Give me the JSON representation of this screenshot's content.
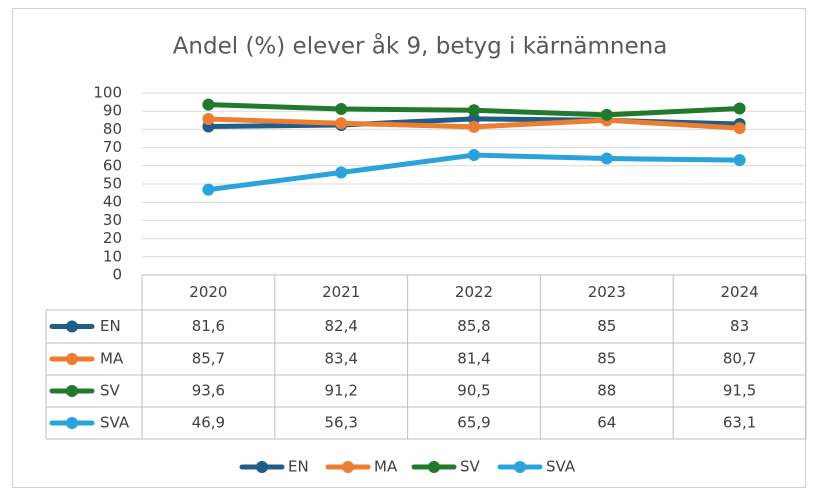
{
  "chart_data": {
    "type": "line",
    "title": "Andel (%) elever åk 9, betyg i kärnämnena",
    "categories": [
      "2020",
      "2021",
      "2022",
      "2023",
      "2024"
    ],
    "series": [
      {
        "name": "EN",
        "color": "#1f5f87",
        "values": [
          81.6,
          82.4,
          85.8,
          85,
          83
        ],
        "value_labels": [
          "81,6",
          "82,4",
          "85,8",
          "85",
          "83"
        ]
      },
      {
        "name": "MA",
        "color": "#ed7d31",
        "values": [
          85.7,
          83.4,
          81.4,
          85,
          80.7
        ],
        "value_labels": [
          "85,7",
          "83,4",
          "81,4",
          "85",
          "80,7"
        ]
      },
      {
        "name": "SV",
        "color": "#217a2b",
        "values": [
          93.6,
          91.2,
          90.5,
          88,
          91.5
        ],
        "value_labels": [
          "93,6",
          "91,2",
          "90,5",
          "88",
          "91,5"
        ]
      },
      {
        "name": "SVA",
        "color": "#2aa3dc",
        "values": [
          46.9,
          56.3,
          65.9,
          64,
          63.1
        ],
        "value_labels": [
          "46,9",
          "56,3",
          "65,9",
          "64",
          "63,1"
        ]
      }
    ],
    "ylim": [
      0,
      100
    ],
    "yticks": [
      0,
      10,
      20,
      30,
      40,
      50,
      60,
      70,
      80,
      90,
      100
    ],
    "grid": true,
    "legend": "bottom"
  }
}
